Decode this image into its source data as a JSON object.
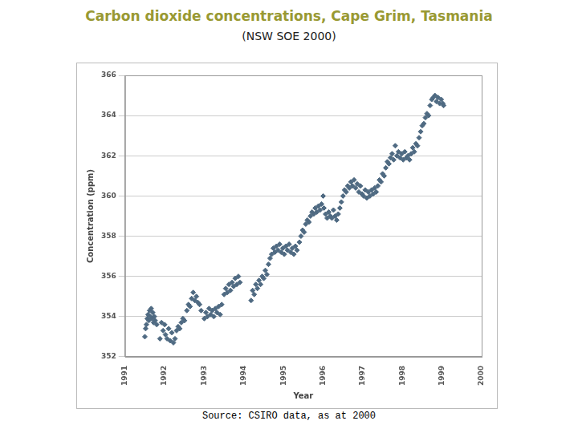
{
  "chart_data": {
    "type": "scatter",
    "title": "Carbon dioxide concentrations, Cape Grim, Tasmania",
    "subtitle": "(NSW SOE 2000)",
    "annotations": [
      "Source: CSIRO data, as at 2000"
    ],
    "x_label": "Year",
    "y_label": "Concentration (ppm)",
    "xlim": [
      1991,
      2000
    ],
    "xticks": [
      1991,
      1992,
      1993,
      1994,
      1995,
      1996,
      1997,
      1998,
      1999,
      2000
    ],
    "ylim": [
      352,
      366
    ],
    "yticks": [
      352,
      354,
      356,
      358,
      360,
      362,
      364,
      366
    ],
    "grid": true,
    "color": "#4f6a82",
    "marker": "diamond",
    "x": [
      1991.5,
      1991.52,
      1991.54,
      1991.56,
      1991.58,
      1991.6,
      1991.62,
      1991.64,
      1991.66,
      1991.68,
      1991.7,
      1991.72,
      1991.74,
      1991.76,
      1991.8,
      1991.88,
      1991.92,
      1991.96,
      1992.0,
      1992.02,
      1992.06,
      1992.1,
      1992.14,
      1992.18,
      1992.22,
      1992.26,
      1992.3,
      1992.34,
      1992.38,
      1992.42,
      1992.46,
      1992.5,
      1992.56,
      1992.6,
      1992.64,
      1992.68,
      1992.72,
      1992.76,
      1992.8,
      1992.84,
      1992.88,
      1992.92,
      1993.0,
      1993.04,
      1993.08,
      1993.12,
      1993.16,
      1993.2,
      1993.24,
      1993.28,
      1993.32,
      1993.36,
      1993.4,
      1993.44,
      1993.5,
      1993.54,
      1993.58,
      1993.62,
      1993.66,
      1993.7,
      1993.74,
      1993.78,
      1993.82,
      1993.86,
      1993.9,
      1994.18,
      1994.22,
      1994.26,
      1994.3,
      1994.34,
      1994.38,
      1994.42,
      1994.46,
      1994.5,
      1994.54,
      1994.58,
      1994.62,
      1994.66,
      1994.7,
      1994.74,
      1994.78,
      1994.82,
      1994.86,
      1994.9,
      1994.94,
      1994.98,
      1995.02,
      1995.06,
      1995.1,
      1995.14,
      1995.18,
      1995.22,
      1995.26,
      1995.3,
      1995.34,
      1995.4,
      1995.44,
      1995.48,
      1995.52,
      1995.56,
      1995.6,
      1995.64,
      1995.68,
      1995.72,
      1995.76,
      1995.8,
      1995.84,
      1995.88,
      1995.92,
      1995.96,
      1996.0,
      1996.02,
      1996.06,
      1996.1,
      1996.14,
      1996.18,
      1996.22,
      1996.26,
      1996.3,
      1996.34,
      1996.38,
      1996.42,
      1996.46,
      1996.5,
      1996.54,
      1996.58,
      1996.62,
      1996.66,
      1996.7,
      1996.74,
      1996.78,
      1996.82,
      1996.86,
      1996.9,
      1996.94,
      1996.98,
      1997.02,
      1997.06,
      1997.1,
      1997.14,
      1997.18,
      1997.22,
      1997.26,
      1997.3,
      1997.34,
      1997.38,
      1997.42,
      1997.46,
      1997.5,
      1997.54,
      1997.58,
      1997.62,
      1997.66,
      1997.7,
      1997.74,
      1997.78,
      1997.82,
      1997.86,
      1997.9,
      1997.94,
      1997.98,
      1998.02,
      1998.06,
      1998.1,
      1998.14,
      1998.18,
      1998.22,
      1998.26,
      1998.3,
      1998.34,
      1998.38,
      1998.42,
      1998.46,
      1998.5,
      1998.54,
      1998.58,
      1998.62,
      1998.66,
      1998.7,
      1998.74,
      1998.78,
      1998.82,
      1998.86,
      1998.9,
      1998.94,
      1998.98,
      1999.02,
      1999.04
    ],
    "values": [
      353.0,
      353.4,
      353.6,
      353.9,
      354.1,
      353.8,
      354.3,
      354.0,
      354.4,
      353.9,
      354.2,
      353.7,
      354.0,
      353.8,
      353.6,
      352.9,
      353.7,
      353.3,
      353.6,
      353.1,
      352.9,
      353.4,
      352.8,
      353.2,
      352.7,
      352.9,
      353.3,
      353.5,
      353.4,
      353.7,
      353.9,
      353.8,
      354.3,
      354.6,
      354.5,
      354.9,
      355.2,
      354.8,
      355.0,
      354.7,
      354.6,
      354.3,
      353.9,
      354.2,
      354.0,
      354.4,
      354.1,
      354.3,
      354.0,
      354.4,
      354.2,
      354.5,
      354.1,
      354.6,
      355.1,
      355.4,
      355.2,
      355.6,
      355.3,
      355.7,
      355.5,
      355.9,
      355.6,
      356.0,
      355.7,
      354.8,
      355.3,
      355.1,
      355.6,
      355.4,
      355.8,
      355.6,
      356.0,
      355.9,
      356.3,
      356.1,
      356.6,
      356.9,
      357.1,
      357.4,
      357.2,
      357.5,
      357.3,
      357.6,
      357.2,
      357.4,
      357.1,
      357.5,
      357.3,
      357.6,
      357.2,
      357.4,
      357.1,
      357.5,
      357.3,
      357.7,
      358.0,
      358.3,
      358.2,
      358.6,
      358.8,
      358.7,
      359.0,
      359.2,
      359.1,
      359.4,
      359.2,
      359.5,
      359.3,
      359.6,
      360.0,
      359.4,
      359.1,
      358.9,
      359.2,
      359.0,
      358.9,
      359.3,
      359.0,
      358.8,
      359.1,
      359.4,
      359.7,
      360.0,
      360.3,
      360.2,
      360.5,
      360.4,
      360.7,
      360.5,
      360.8,
      360.4,
      360.6,
      360.2,
      360.5,
      360.1,
      360.0,
      360.3,
      359.9,
      360.2,
      360.0,
      360.3,
      360.1,
      360.4,
      360.2,
      360.5,
      360.8,
      360.7,
      361.1,
      361.0,
      361.4,
      361.7,
      361.6,
      361.9,
      362.1,
      361.8,
      362.5,
      362.0,
      362.2,
      361.9,
      362.1,
      361.8,
      362.2,
      361.9,
      362.0,
      361.8,
      362.1,
      362.4,
      362.2,
      362.6,
      362.5,
      362.9,
      363.2,
      363.5,
      363.6,
      363.9,
      364.1,
      364.0,
      364.5,
      364.8,
      364.9,
      365.0,
      364.7,
      364.9,
      364.6,
      364.8,
      364.6,
      364.5
    ]
  }
}
